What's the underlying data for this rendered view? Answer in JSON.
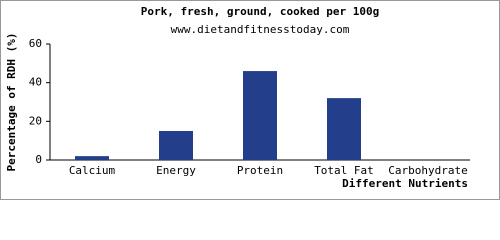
{
  "chart_data": {
    "type": "bar",
    "title": "Pork, fresh, ground, cooked per 100g",
    "subtitle": "www.dietandfitnesstoday.com",
    "y_label": "Percentage of RDH (%)",
    "x_label": "Different Nutrients",
    "categories": [
      "Calcium",
      "Energy",
      "Protein",
      "Total Fat",
      "Carbohydrate"
    ],
    "values": [
      2,
      15,
      46,
      32,
      0
    ],
    "color": "#233e8b",
    "ylim": [
      0,
      60
    ],
    "yticks": [
      0,
      20,
      40,
      60
    ],
    "grid": false
  }
}
